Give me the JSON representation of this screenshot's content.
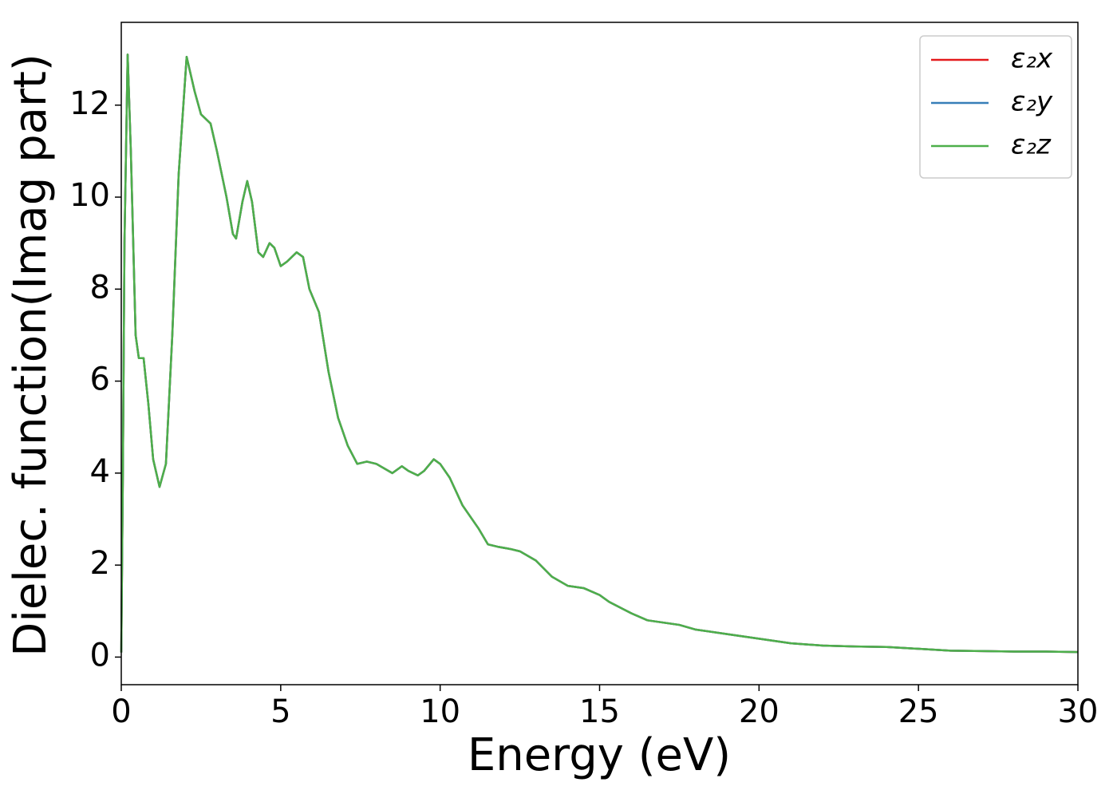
{
  "chart_data": {
    "type": "line",
    "xlabel": "Energy (eV)",
    "ylabel": "Dielec. function(Imag part)",
    "x": [
      0,
      0.05,
      0.1,
      0.2,
      0.3,
      0.45,
      0.55,
      0.7,
      0.85,
      1.0,
      1.2,
      1.4,
      1.6,
      1.8,
      2.05,
      2.3,
      2.5,
      2.8,
      3.0,
      3.3,
      3.5,
      3.6,
      3.8,
      3.95,
      4.1,
      4.3,
      4.45,
      4.65,
      4.8,
      5.0,
      5.2,
      5.5,
      5.7,
      5.9,
      6.2,
      6.5,
      6.8,
      7.1,
      7.4,
      7.7,
      8.0,
      8.5,
      8.8,
      9.0,
      9.3,
      9.5,
      9.8,
      10.0,
      10.3,
      10.7,
      11.2,
      11.5,
      11.8,
      12.2,
      12.5,
      13.0,
      13.5,
      14.0,
      14.5,
      15.0,
      15.3,
      16.0,
      16.5,
      17.5,
      18.0,
      19.0,
      20.0,
      21.0,
      22.0,
      23.0,
      24.0,
      25.0,
      26.0,
      27.0,
      28.0,
      29.0,
      30.0
    ],
    "series": [
      {
        "name": "ε₂x",
        "color": "#e41a1c",
        "values": [
          0.1,
          4,
          9,
          13.1,
          11,
          7,
          6.5,
          6.5,
          5.5,
          4.3,
          3.7,
          4.2,
          7,
          10.5,
          13.05,
          12.3,
          11.8,
          11.6,
          11.0,
          10.0,
          9.2,
          9.1,
          9.9,
          10.35,
          9.9,
          8.8,
          8.7,
          9.0,
          8.9,
          8.5,
          8.6,
          8.8,
          8.7,
          8.0,
          7.5,
          6.2,
          5.2,
          4.6,
          4.2,
          4.25,
          4.2,
          4.0,
          4.15,
          4.05,
          3.95,
          4.05,
          4.3,
          4.2,
          3.9,
          3.3,
          2.8,
          2.45,
          2.4,
          2.35,
          2.3,
          2.1,
          1.75,
          1.55,
          1.5,
          1.35,
          1.2,
          0.95,
          0.8,
          0.7,
          0.6,
          0.5,
          0.4,
          0.3,
          0.25,
          0.23,
          0.22,
          0.18,
          0.14,
          0.13,
          0.12,
          0.12,
          0.11
        ]
      },
      {
        "name": "ε₂y",
        "color": "#377eb8",
        "values": [
          0.1,
          4,
          9,
          13.1,
          11,
          7,
          6.5,
          6.5,
          5.5,
          4.3,
          3.7,
          4.2,
          7,
          10.5,
          13.05,
          12.3,
          11.8,
          11.6,
          11.0,
          10.0,
          9.2,
          9.1,
          9.9,
          10.35,
          9.9,
          8.8,
          8.7,
          9.0,
          8.9,
          8.5,
          8.6,
          8.8,
          8.7,
          8.0,
          7.5,
          6.2,
          5.2,
          4.6,
          4.2,
          4.25,
          4.2,
          4.0,
          4.15,
          4.05,
          3.95,
          4.05,
          4.3,
          4.2,
          3.9,
          3.3,
          2.8,
          2.45,
          2.4,
          2.35,
          2.3,
          2.1,
          1.75,
          1.55,
          1.5,
          1.35,
          1.2,
          0.95,
          0.8,
          0.7,
          0.6,
          0.5,
          0.4,
          0.3,
          0.25,
          0.23,
          0.22,
          0.18,
          0.14,
          0.13,
          0.12,
          0.12,
          0.11
        ]
      },
      {
        "name": "ε₂z",
        "color": "#4daf4a",
        "values": [
          0.1,
          4,
          9,
          13.1,
          11,
          7,
          6.5,
          6.5,
          5.5,
          4.3,
          3.7,
          4.2,
          7,
          10.5,
          13.05,
          12.3,
          11.8,
          11.6,
          11.0,
          10.0,
          9.2,
          9.1,
          9.9,
          10.35,
          9.9,
          8.8,
          8.7,
          9.0,
          8.9,
          8.5,
          8.6,
          8.8,
          8.7,
          8.0,
          7.5,
          6.2,
          5.2,
          4.6,
          4.2,
          4.25,
          4.2,
          4.0,
          4.15,
          4.05,
          3.95,
          4.05,
          4.3,
          4.2,
          3.9,
          3.3,
          2.8,
          2.45,
          2.4,
          2.35,
          2.3,
          2.1,
          1.75,
          1.55,
          1.5,
          1.35,
          1.2,
          0.95,
          0.8,
          0.7,
          0.6,
          0.5,
          0.4,
          0.3,
          0.25,
          0.23,
          0.22,
          0.18,
          0.14,
          0.13,
          0.12,
          0.12,
          0.11
        ]
      }
    ],
    "xlim": [
      0,
      30
    ],
    "xticks": [
      0,
      5,
      10,
      15,
      20,
      25,
      30
    ],
    "ylim": [
      -0.6,
      13.8
    ],
    "yticks": [
      0,
      2,
      4,
      6,
      8,
      10,
      12
    ],
    "grid": false,
    "legend": "upper right"
  }
}
